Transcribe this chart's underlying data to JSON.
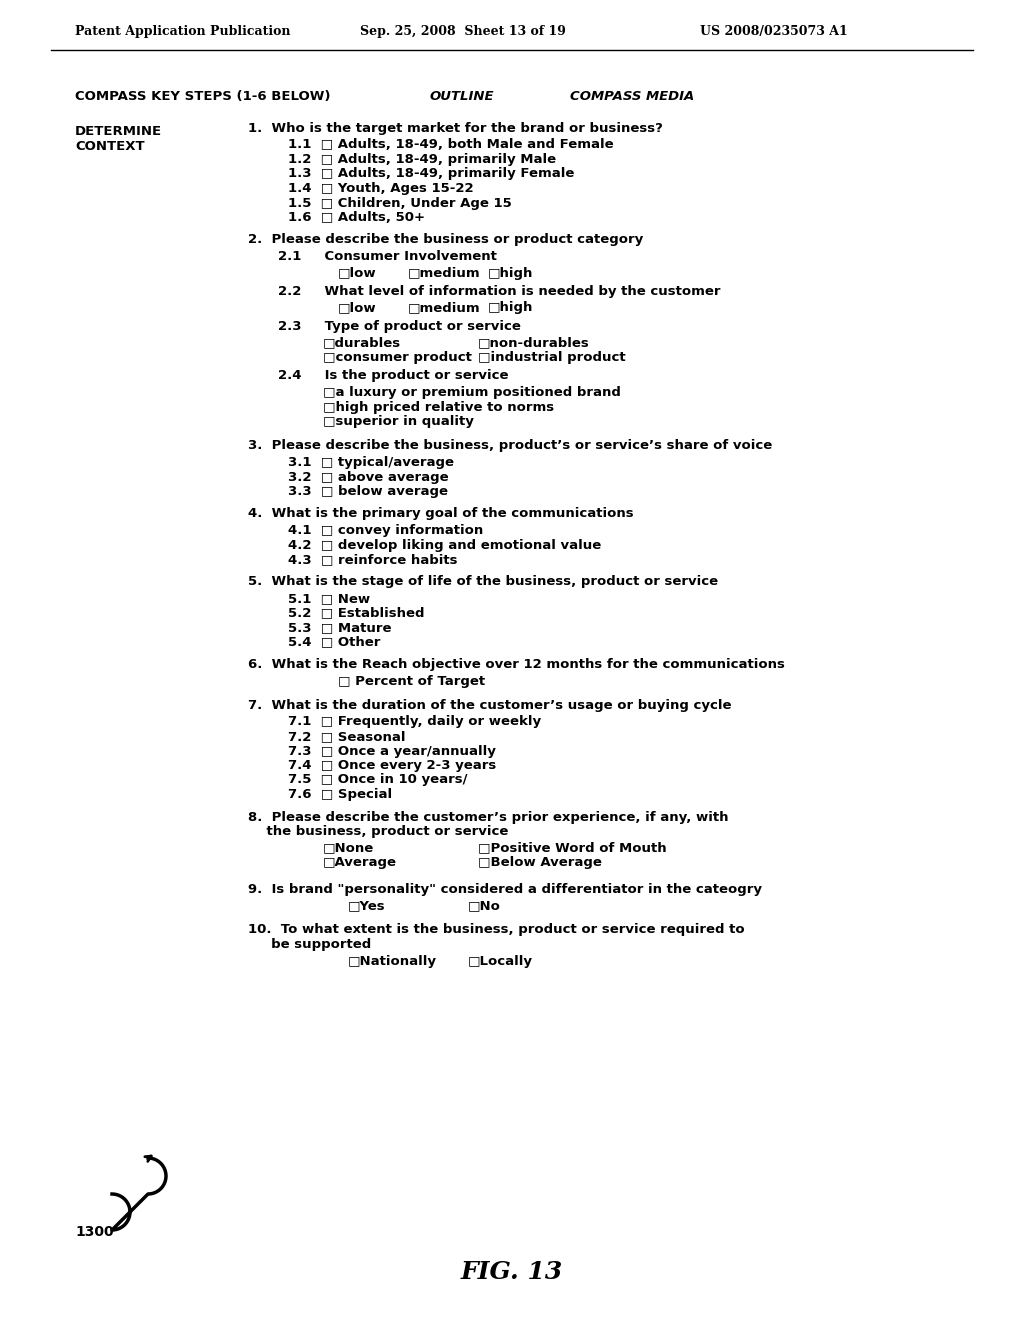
{
  "header_left": "Patent Application Publication",
  "header_mid": "Sep. 25, 2008  Sheet 13 of 19",
  "header_right": "US 2008/0235073 A1",
  "col1": "COMPASS KEY STEPS (1-6 BELOW)",
  "col2": "OUTLINE",
  "col3": "COMPASS MEDIA",
  "left_label1": "DETERMINE",
  "left_label2": "CONTEXT",
  "figure_label": "FIG. 13",
  "label_1300": "1300",
  "content": [
    {
      "type": "question",
      "text": "1.  Who is the target market for the brand or business?"
    },
    {
      "type": "item_cb",
      "text": "1.1  □ Adults, 18-49, both Male and Female"
    },
    {
      "type": "item_cb",
      "text": "1.2  □ Adults, 18-49, primarily Male"
    },
    {
      "type": "item_cb",
      "text": "1.3  □ Adults, 18-49, primarily Female"
    },
    {
      "type": "item_cb",
      "text": "1.4  □ Youth, Ages 15-22"
    },
    {
      "type": "item_cb",
      "text": "1.5  □ Children, Under Age 15"
    },
    {
      "type": "item_cb",
      "text": "1.6  □ Adults, 50+"
    },
    {
      "type": "blank"
    },
    {
      "type": "question",
      "text": "2.  Please describe the business or product category"
    },
    {
      "type": "sub_label",
      "text": "2.1     Consumer Involvement"
    },
    {
      "type": "checkbox_row",
      "items": [
        "□low",
        "□medium",
        "□high"
      ]
    },
    {
      "type": "sub_label",
      "text": "2.2     What level of information is needed by the customer"
    },
    {
      "type": "checkbox_row",
      "items": [
        "□low",
        "□medium",
        "□high"
      ]
    },
    {
      "type": "sub_label",
      "text": "2.3     Type of product or service"
    },
    {
      "type": "checkbox_2col",
      "left": [
        "□durables",
        "□consumer product"
      ],
      "right": [
        "□non-durables",
        "□industrial product"
      ]
    },
    {
      "type": "sub_label",
      "text": "2.4     Is the product or service"
    },
    {
      "type": "checkbox_block",
      "items": [
        "□a luxury or premium positioned brand",
        "□high priced relative to norms",
        "□superior in quality"
      ]
    },
    {
      "type": "blank"
    },
    {
      "type": "question",
      "text": "3.  Please describe the business, product’s or service’s share of voice"
    },
    {
      "type": "item_cb",
      "text": "3.1  □ typical/average"
    },
    {
      "type": "item_cb",
      "text": "3.2  □ above average"
    },
    {
      "type": "item_cb",
      "text": "3.3  □ below average"
    },
    {
      "type": "blank"
    },
    {
      "type": "question",
      "text": "4.  What is the primary goal of the communications"
    },
    {
      "type": "item_cb",
      "text": "4.1  □ convey information"
    },
    {
      "type": "item_cb",
      "text": "4.2  □ develop liking and emotional value"
    },
    {
      "type": "item_cb",
      "text": "4.3  □ reinforce habits"
    },
    {
      "type": "blank"
    },
    {
      "type": "question",
      "text": "5.  What is the stage of life of the business, product or service"
    },
    {
      "type": "item_cb",
      "text": "5.1  □ New"
    },
    {
      "type": "item_cb",
      "text": "5.2  □ Established"
    },
    {
      "type": "item_cb",
      "text": "5.3  □ Mature"
    },
    {
      "type": "item_cb",
      "text": "5.4  □ Other"
    },
    {
      "type": "blank"
    },
    {
      "type": "question",
      "text": "6.  What is the Reach objective over 12 months for the communications"
    },
    {
      "type": "checkbox_center",
      "text": "□ Percent of Target"
    },
    {
      "type": "blank"
    },
    {
      "type": "question",
      "text": "7.  What is the duration of the customer’s usage or buying cycle"
    },
    {
      "type": "item_cb",
      "text": "7.1  □ Frequently, daily or weekly"
    },
    {
      "type": "item_cb",
      "text": "7.2  □ Seasonal"
    },
    {
      "type": "item_cb",
      "text": "7.3  □ Once a year/annually"
    },
    {
      "type": "item_cb",
      "text": "7.4  □ Once every 2-3 years"
    },
    {
      "type": "item_cb",
      "text": "7.5  □ Once in 10 years/"
    },
    {
      "type": "item_cb",
      "text": "7.6  □ Special"
    },
    {
      "type": "blank"
    },
    {
      "type": "question2",
      "text": "8.  Please describe the customer’s prior experience, if any, with\n    the business, product or service"
    },
    {
      "type": "checkbox_2col",
      "left": [
        "□None",
        "□Average"
      ],
      "right": [
        "□Positive Word of Mouth",
        "□Below Average"
      ]
    },
    {
      "type": "blank"
    },
    {
      "type": "question",
      "text": "9.  Is brand \"personality\" considered a differentiator in the cateogry"
    },
    {
      "type": "checkbox_2col_center",
      "left": "□Yes",
      "right": "□No"
    },
    {
      "type": "blank"
    },
    {
      "type": "question2",
      "text": "10.  To what extent is the business, product or service required to\n     be supported"
    },
    {
      "type": "checkbox_2col_center",
      "left": "□Nationally",
      "right": "□Locally"
    }
  ]
}
